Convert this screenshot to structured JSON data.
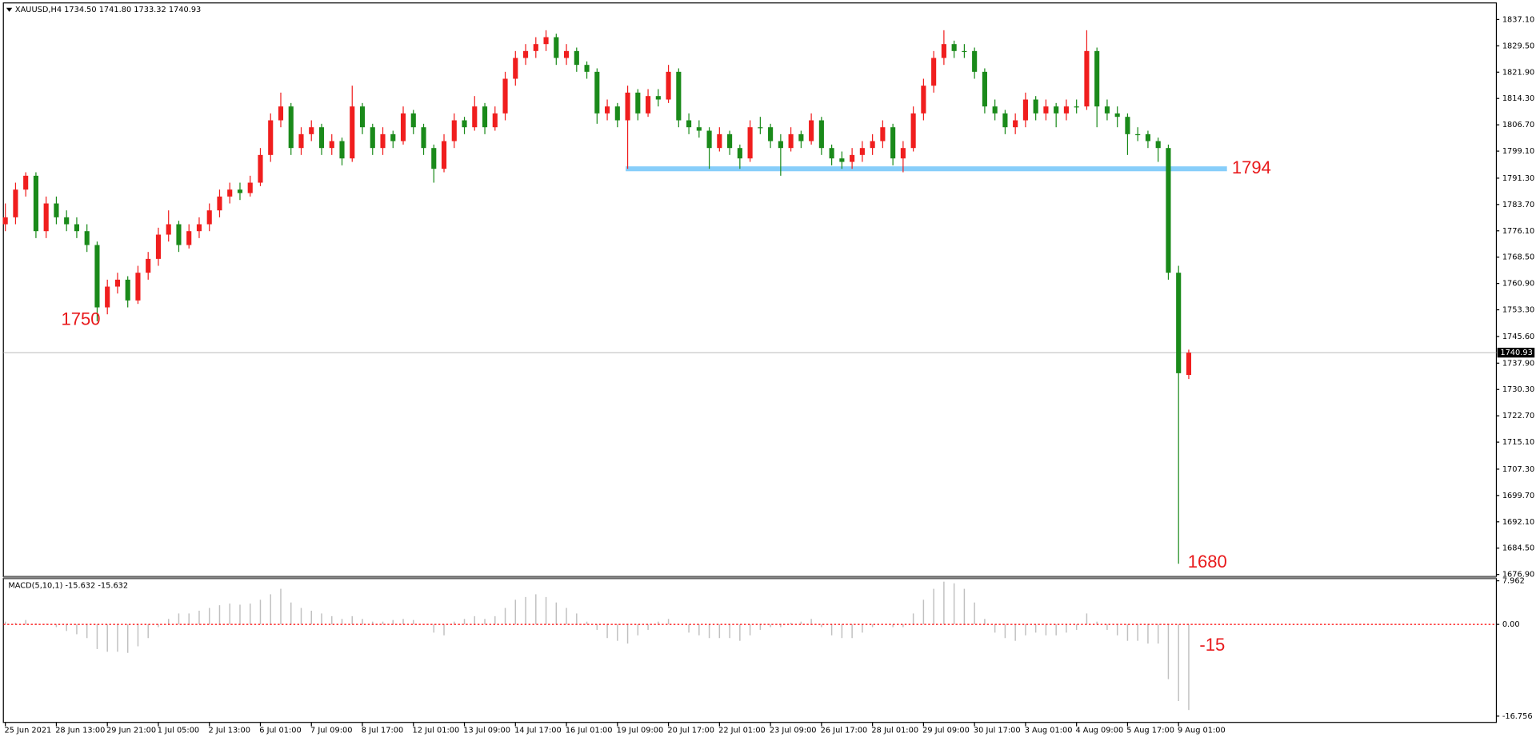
{
  "chart_data": {
    "type": "candlestick",
    "title": "XAUUSD,H4  1734.50 1741.80 1733.32 1740.93",
    "up_color": "#f01e1e",
    "down_color": "#1a8a1a",
    "ylim": [
      1676.3,
      1841.6
    ],
    "yticks": [
      {
        "value": 1837.1,
        "label": "1837.10"
      },
      {
        "value": 1829.5,
        "label": "1829.50"
      },
      {
        "value": 1821.9,
        "label": "1821.90"
      },
      {
        "value": 1814.3,
        "label": "1814.30"
      },
      {
        "value": 1806.7,
        "label": "1806.70"
      },
      {
        "value": 1799.1,
        "label": "1799.10"
      },
      {
        "value": 1791.3,
        "label": "1791.30"
      },
      {
        "value": 1783.7,
        "label": "1783.70"
      },
      {
        "value": 1776.1,
        "label": "1776.10"
      },
      {
        "value": 1768.5,
        "label": "1768.50"
      },
      {
        "value": 1760.9,
        "label": "1760.90"
      },
      {
        "value": 1753.3,
        "label": "1753.30"
      },
      {
        "value": 1745.6,
        "label": "1745.60"
      },
      {
        "value": 1737.9,
        "label": "1737.90"
      },
      {
        "value": 1730.3,
        "label": "1730.30"
      },
      {
        "value": 1722.7,
        "label": "1722.70"
      },
      {
        "value": 1715.1,
        "label": "1715.10"
      },
      {
        "value": 1707.3,
        "label": "1707.30"
      },
      {
        "value": 1699.7,
        "label": "1699.70"
      },
      {
        "value": 1692.1,
        "label": "1692.10"
      },
      {
        "value": 1684.5,
        "label": "1684.50"
      },
      {
        "value": 1676.9,
        "label": "1676.90"
      }
    ],
    "current_price": 1740.93,
    "level": 1794,
    "level_color": "#87cefa",
    "annotations": [
      1750,
      1680
    ],
    "categories": [
      "25 Jun 2021",
      null,
      null,
      null,
      null,
      "28 Jun 13:00",
      null,
      null,
      null,
      null,
      "29 Jun 21:00",
      null,
      null,
      null,
      null,
      "1 Jul 05:00",
      null,
      null,
      null,
      null,
      "2 Jul 13:00",
      null,
      null,
      null,
      null,
      "6 Jul 01:00",
      null,
      null,
      null,
      null,
      "7 Jul 09:00",
      null,
      null,
      null,
      null,
      "8 Jul 17:00",
      null,
      null,
      null,
      null,
      "12 Jul 01:00",
      null,
      null,
      null,
      null,
      "13 Jul 09:00",
      null,
      null,
      null,
      null,
      "14 Jul 17:00",
      null,
      null,
      null,
      null,
      "16 Jul 01:00",
      null,
      null,
      null,
      null,
      "19 Jul 09:00",
      null,
      null,
      null,
      null,
      "20 Jul 17:00",
      null,
      null,
      null,
      null,
      "22 Jul 01:00",
      null,
      null,
      null,
      null,
      "23 Jul 09:00",
      null,
      null,
      null,
      null,
      "26 Jul 17:00",
      null,
      null,
      null,
      null,
      "28 Jul 01:00",
      null,
      null,
      null,
      null,
      "29 Jul 09:00",
      null,
      null,
      null,
      null,
      "30 Jul 17:00",
      null,
      null,
      null,
      null,
      "3 Aug 01:00",
      null,
      null,
      null,
      null,
      "4 Aug 09:00",
      null,
      null,
      null,
      null,
      "5 Aug 17:00",
      null,
      null,
      null,
      null,
      "9 Aug 01:00",
      null
    ],
    "ohlc": [
      [
        1778,
        1784,
        1776,
        1780
      ],
      [
        1780,
        1790,
        1778,
        1788
      ],
      [
        1788,
        1793,
        1786,
        1792
      ],
      [
        1792,
        1793,
        1774,
        1776
      ],
      [
        1776,
        1786,
        1774,
        1784
      ],
      [
        1784,
        1786,
        1778,
        1780
      ],
      [
        1780,
        1782,
        1776,
        1778
      ],
      [
        1778,
        1780,
        1774,
        1776
      ],
      [
        1776,
        1778,
        1770,
        1772
      ],
      [
        1772,
        1773,
        1750,
        1754
      ],
      [
        1754,
        1762,
        1752,
        1760
      ],
      [
        1760,
        1764,
        1758,
        1762
      ],
      [
        1762,
        1763,
        1754,
        1756
      ],
      [
        1756,
        1766,
        1755,
        1764
      ],
      [
        1764,
        1770,
        1762,
        1768
      ],
      [
        1768,
        1777,
        1766,
        1775
      ],
      [
        1775,
        1782,
        1773,
        1778
      ],
      [
        1778,
        1779,
        1770,
        1772
      ],
      [
        1772,
        1778,
        1771,
        1776
      ],
      [
        1776,
        1780,
        1774,
        1778
      ],
      [
        1778,
        1784,
        1776,
        1782
      ],
      [
        1782,
        1788,
        1780,
        1786
      ],
      [
        1786,
        1790,
        1784,
        1788
      ],
      [
        1788,
        1790,
        1785,
        1787
      ],
      [
        1787,
        1792,
        1786,
        1790
      ],
      [
        1790,
        1800,
        1789,
        1798
      ],
      [
        1798,
        1810,
        1796,
        1808
      ],
      [
        1808,
        1816,
        1806,
        1812
      ],
      [
        1812,
        1813,
        1798,
        1800
      ],
      [
        1800,
        1806,
        1798,
        1804
      ],
      [
        1804,
        1808,
        1802,
        1806
      ],
      [
        1806,
        1807,
        1798,
        1800
      ],
      [
        1800,
        1804,
        1798,
        1802
      ],
      [
        1802,
        1803,
        1795,
        1797
      ],
      [
        1797,
        1818,
        1796,
        1812
      ],
      [
        1812,
        1813,
        1804,
        1806
      ],
      [
        1806,
        1807,
        1798,
        1800
      ],
      [
        1800,
        1806,
        1798,
        1804
      ],
      [
        1804,
        1805,
        1800,
        1802
      ],
      [
        1802,
        1812,
        1801,
        1810
      ],
      [
        1810,
        1811,
        1804,
        1806
      ],
      [
        1806,
        1807,
        1798,
        1800
      ],
      [
        1800,
        1801,
        1790,
        1794
      ],
      [
        1794,
        1804,
        1793,
        1802
      ],
      [
        1802,
        1810,
        1800,
        1808
      ],
      [
        1808,
        1809,
        1804,
        1806
      ],
      [
        1806,
        1815,
        1805,
        1812
      ],
      [
        1812,
        1813,
        1804,
        1806
      ],
      [
        1806,
        1812,
        1805,
        1810
      ],
      [
        1810,
        1822,
        1808,
        1820
      ],
      [
        1820,
        1828,
        1818,
        1826
      ],
      [
        1826,
        1830,
        1824,
        1828
      ],
      [
        1828,
        1832,
        1826,
        1830
      ],
      [
        1830,
        1834,
        1828,
        1832
      ],
      [
        1832,
        1833,
        1824,
        1826
      ],
      [
        1826,
        1830,
        1824,
        1828
      ],
      [
        1828,
        1829,
        1822,
        1824
      ],
      [
        1824,
        1825,
        1820,
        1822
      ],
      [
        1822,
        1823,
        1807,
        1810
      ],
      [
        1810,
        1814,
        1808,
        1812
      ],
      [
        1812,
        1813,
        1806,
        1808
      ],
      [
        1808,
        1818,
        1794,
        1816
      ],
      [
        1816,
        1817,
        1808,
        1810
      ],
      [
        1810,
        1817,
        1809,
        1815
      ],
      [
        1815,
        1817,
        1812,
        1814
      ],
      [
        1814,
        1824,
        1813,
        1822
      ],
      [
        1822,
        1823,
        1806,
        1808
      ],
      [
        1808,
        1810,
        1804,
        1806
      ],
      [
        1806,
        1808,
        1803,
        1805
      ],
      [
        1805,
        1806,
        1794,
        1800
      ],
      [
        1800,
        1806,
        1799,
        1804
      ],
      [
        1804,
        1805,
        1798,
        1800
      ],
      [
        1800,
        1801,
        1794,
        1797
      ],
      [
        1797,
        1808,
        1796,
        1806
      ],
      [
        1806,
        1809,
        1804,
        1806
      ],
      [
        1806,
        1807,
        1800,
        1802
      ],
      [
        1802,
        1804,
        1792,
        1800
      ],
      [
        1800,
        1806,
        1799,
        1804
      ],
      [
        1804,
        1805,
        1800,
        1802
      ],
      [
        1802,
        1810,
        1801,
        1808
      ],
      [
        1808,
        1809,
        1798,
        1800
      ],
      [
        1800,
        1801,
        1795,
        1797
      ],
      [
        1797,
        1799,
        1794,
        1796
      ],
      [
        1796,
        1800,
        1794,
        1798
      ],
      [
        1798,
        1802,
        1796,
        1800
      ],
      [
        1800,
        1804,
        1798,
        1802
      ],
      [
        1802,
        1808,
        1800,
        1806
      ],
      [
        1806,
        1807,
        1795,
        1797
      ],
      [
        1797,
        1802,
        1793,
        1800
      ],
      [
        1800,
        1812,
        1799,
        1810
      ],
      [
        1810,
        1820,
        1808,
        1818
      ],
      [
        1818,
        1828,
        1816,
        1826
      ],
      [
        1826,
        1834,
        1824,
        1830
      ],
      [
        1830,
        1831,
        1826,
        1828
      ],
      [
        1828,
        1830,
        1826,
        1828
      ],
      [
        1828,
        1829,
        1820,
        1822
      ],
      [
        1822,
        1823,
        1810,
        1812
      ],
      [
        1812,
        1814,
        1808,
        1810
      ],
      [
        1810,
        1811,
        1804,
        1806
      ],
      [
        1806,
        1810,
        1804,
        1808
      ],
      [
        1808,
        1816,
        1806,
        1814
      ],
      [
        1814,
        1815,
        1808,
        1810
      ],
      [
        1810,
        1814,
        1808,
        1812
      ],
      [
        1812,
        1813,
        1806,
        1810
      ],
      [
        1810,
        1814,
        1808,
        1812
      ],
      [
        1812,
        1814,
        1810,
        1812
      ],
      [
        1812,
        1834,
        1811,
        1828
      ],
      [
        1828,
        1829,
        1806,
        1812
      ],
      [
        1812,
        1814,
        1808,
        1810
      ],
      [
        1810,
        1812,
        1806,
        1809
      ],
      [
        1809,
        1810,
        1798,
        1804
      ],
      [
        1804,
        1806,
        1802,
        1804
      ],
      [
        1804,
        1805,
        1800,
        1802
      ],
      [
        1802,
        1803,
        1796,
        1800
      ],
      [
        1800,
        1801,
        1762,
        1764
      ],
      [
        1764,
        1766,
        1680,
        1735
      ],
      [
        1734.5,
        1741.8,
        1733.32,
        1740.93
      ]
    ],
    "macd": {
      "title": "MACD(5,10,1) -15.632 -15.632",
      "color": "#c0c0c0",
      "zero_color": "#ff0000",
      "ylim": [
        -17.9,
        8.2
      ],
      "yticks": [
        7.962,
        {
          "value": 0,
          "label": "0.00"
        },
        -16.756
      ],
      "annotation": -15,
      "values": [
        0.5,
        0.3,
        0.8,
        0.2,
        0.1,
        -0.5,
        -1.2,
        -1.8,
        -2.5,
        -4.5,
        -5,
        -5,
        -5.2,
        -4,
        -2.5,
        -0.5,
        1,
        2,
        2,
        2.5,
        3,
        3.5,
        3.8,
        3.6,
        3.8,
        4.5,
        5.5,
        6.5,
        4,
        3,
        2.5,
        2,
        1.5,
        1,
        1.5,
        1,
        0.5,
        0.5,
        0.8,
        1,
        0.8,
        0,
        -1.5,
        -2,
        0.5,
        1,
        1.5,
        1,
        1.5,
        3,
        4.5,
        5,
        5.5,
        5,
        4,
        3,
        2,
        0.5,
        -1,
        -2.5,
        -3,
        -3.5,
        -2,
        -1,
        0.5,
        1,
        0,
        -1.5,
        -2,
        -2.5,
        -2.5,
        -2.5,
        -3,
        -2,
        -1,
        -0.5,
        -0.5,
        0.3,
        0.5,
        1,
        -0.5,
        -2,
        -2.5,
        -2.5,
        -1.5,
        -0.5,
        0,
        -0.5,
        -0.5,
        2,
        4.5,
        6.5,
        7.8,
        7.5,
        6.5,
        4,
        1,
        -1.5,
        -2.5,
        -3,
        -2,
        -1.5,
        -2,
        -2,
        -1.5,
        -1,
        2,
        0.5,
        -1,
        -2,
        -3,
        -3,
        -3.5,
        -3.5,
        -10,
        -14,
        -15.632
      ]
    }
  }
}
